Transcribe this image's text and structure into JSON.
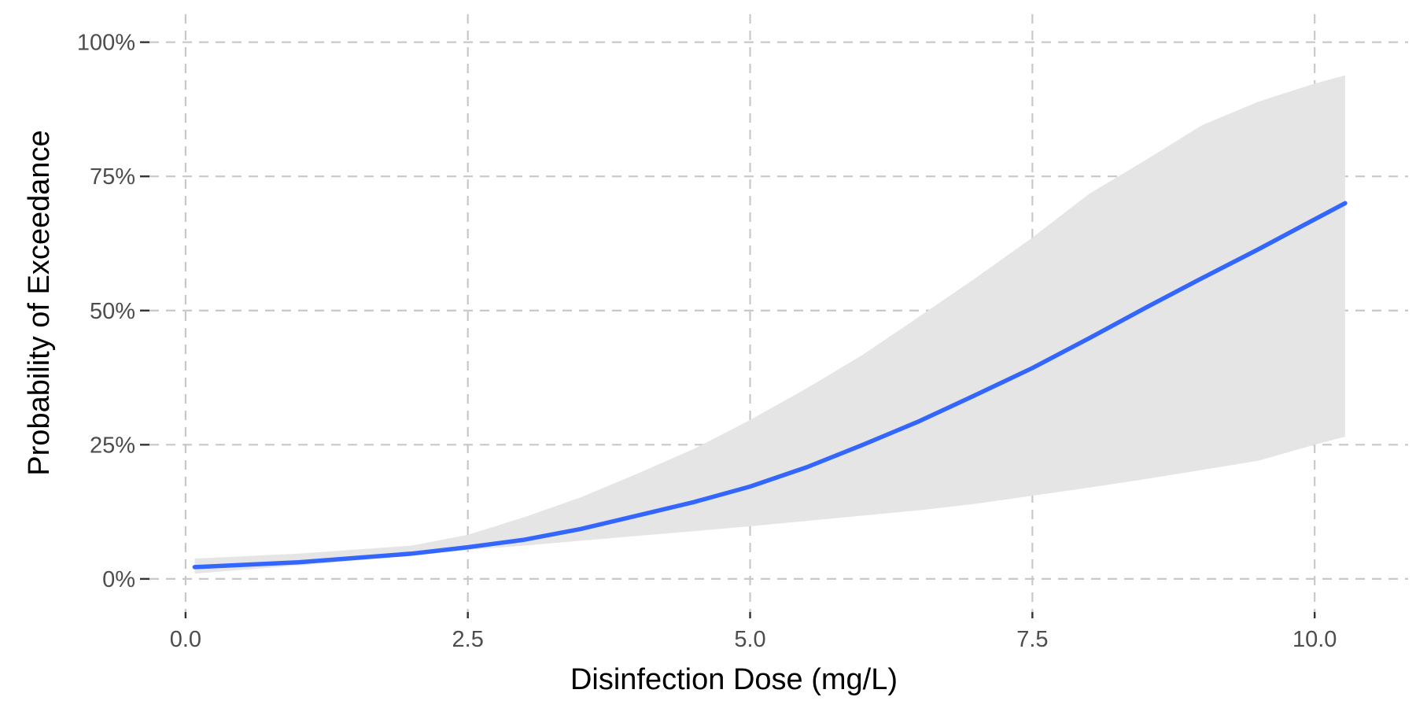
{
  "chart_data": {
    "type": "line",
    "title": "",
    "xlabel": "Disinfection Dose (mg/L)",
    "ylabel": "Probability of Exceedance",
    "xlim": [
      -0.25,
      10.8
    ],
    "ylim": [
      -0.05,
      1.02
    ],
    "x_ticks": [
      0,
      2.5,
      5,
      7.5,
      10
    ],
    "x_tick_labels": [
      "0.0",
      "2.5",
      "5.0",
      "7.5",
      "10.0"
    ],
    "y_ticks": [
      0,
      0.25,
      0.5,
      0.75,
      1
    ],
    "y_tick_labels": [
      "0%",
      "25%",
      "50%",
      "75%",
      "100%"
    ],
    "grid": true,
    "legend": "none",
    "colors": {
      "line": "#3366ff",
      "band": "#e5e5e5",
      "grid": "#c8c8c8"
    },
    "series": [
      {
        "x": [
          0.08,
          1.0,
          2.0,
          2.5,
          3.0,
          3.5,
          4.0,
          4.5,
          5.0,
          5.5,
          6.0,
          6.5,
          7.0,
          7.5,
          8.0,
          8.5,
          9.0,
          9.5,
          10.0,
          10.27
        ],
        "y": [
          0.022,
          0.031,
          0.047,
          0.059,
          0.073,
          0.093,
          0.118,
          0.143,
          0.172,
          0.208,
          0.25,
          0.294,
          0.343,
          0.393,
          0.448,
          0.505,
          0.56,
          0.614,
          0.67,
          0.7
        ],
        "lower": [
          0.01,
          0.025,
          0.043,
          0.054,
          0.062,
          0.071,
          0.08,
          0.089,
          0.098,
          0.108,
          0.118,
          0.128,
          0.14,
          0.155,
          0.17,
          0.186,
          0.203,
          0.22,
          0.25,
          0.265
        ],
        "upper": [
          0.038,
          0.047,
          0.062,
          0.082,
          0.115,
          0.152,
          0.196,
          0.242,
          0.296,
          0.355,
          0.418,
          0.489,
          0.561,
          0.636,
          0.717,
          0.78,
          0.845,
          0.889,
          0.923,
          0.938
        ]
      }
    ]
  }
}
